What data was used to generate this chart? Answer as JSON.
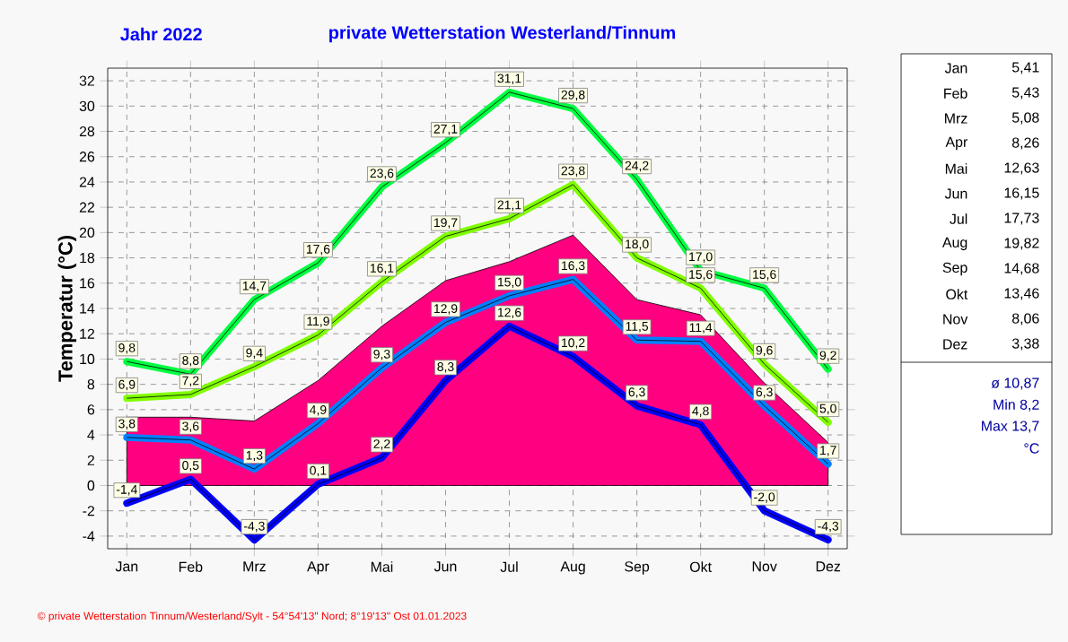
{
  "chart_data": [
    {
      "type": "line",
      "title": "Jahr  2022",
      "subtitle": "private Wetterstation Westerland/Tinnum",
      "ylabel": "Temperatur  (°C)",
      "categories": [
        "Jan",
        "Feb",
        "Mrz",
        "Apr",
        "Mai",
        "Jun",
        "Jul",
        "Aug",
        "Sep",
        "Okt",
        "Nov",
        "Dez"
      ],
      "series": [
        {
          "color": "#00ff40",
          "values": [
            9.8,
            8.8,
            14.7,
            17.6,
            23.6,
            27.1,
            31.1,
            29.8,
            24.2,
            17.0,
            15.6,
            9.2
          ],
          "value_labels": [
            "9,8",
            "8,8",
            "14,7",
            "17,6",
            "23,6",
            "27,1",
            "31,1",
            "29,8",
            "24,2",
            "17,0",
            "15,6",
            "9,2"
          ]
        },
        {
          "color": "#80ff00",
          "values": [
            6.9,
            7.2,
            9.4,
            11.9,
            16.1,
            19.7,
            21.1,
            23.8,
            18.0,
            15.6,
            9.6,
            5.0
          ],
          "value_labels": [
            "6,9",
            "7,2",
            "9,4",
            "11,9",
            "16,1",
            "19,7",
            "21,1",
            "23,8",
            "18,0",
            "15,6",
            "9,6",
            "5,0"
          ]
        },
        {
          "type": "area",
          "color": "#ff0080",
          "values": [
            5.4,
            5.4,
            5.1,
            8.3,
            12.6,
            16.2,
            17.7,
            19.8,
            14.7,
            13.5,
            8.1,
            3.4
          ]
        },
        {
          "color": "#0080ff",
          "values": [
            3.8,
            3.6,
            1.3,
            4.9,
            9.3,
            12.9,
            15.0,
            16.3,
            11.5,
            11.4,
            6.3,
            1.7
          ],
          "value_labels": [
            "3,8",
            "3,6",
            "1,3",
            "4,9",
            "9,3",
            "12,9",
            "15,0",
            "16,3",
            "11,5",
            "11,4",
            "6,3",
            "1,7"
          ]
        },
        {
          "color": "#0000ff",
          "values": [
            -1.4,
            0.5,
            -4.3,
            0.1,
            2.2,
            8.3,
            12.6,
            10.2,
            6.3,
            4.8,
            -2.0,
            -4.3
          ],
          "value_labels": [
            "-1,4",
            "0,5",
            "-4,3",
            "0,1",
            "2,2",
            "8,3",
            "12,6",
            "10,2",
            "6,3",
            "4,8",
            "-2,0",
            "-4,3"
          ]
        }
      ],
      "ylim": [
        -5,
        33
      ],
      "yticks": [
        -4,
        -2,
        0,
        2,
        4,
        6,
        8,
        10,
        12,
        14,
        16,
        18,
        20,
        22,
        24,
        26,
        28,
        30,
        32
      ],
      "grid": true,
      "marker": "none",
      "line_style": "solid",
      "annotations": [
        "© private Wetterstation Tinnum/Westerland/Sylt - 54°54'13\" Nord; 8°19'13\" Ost  01.01.2023"
      ]
    },
    {
      "type": "other",
      "categories": [
        "Jan",
        "Feb",
        "Mrz",
        "Apr",
        "Mai",
        "Jun",
        "Jul",
        "Aug",
        "Sep",
        "Okt",
        "Nov",
        "Dez"
      ],
      "value_labels": [
        "5,41",
        "5,43",
        "5,08",
        "8,26",
        "12,63",
        "16,15",
        "17,73",
        "19,82",
        "14,68",
        "13,46",
        "8,06",
        "3,38"
      ],
      "annotations": [
        "ø 10,87",
        "Min 8,2",
        "Max 13,7",
        "°C"
      ]
    }
  ]
}
